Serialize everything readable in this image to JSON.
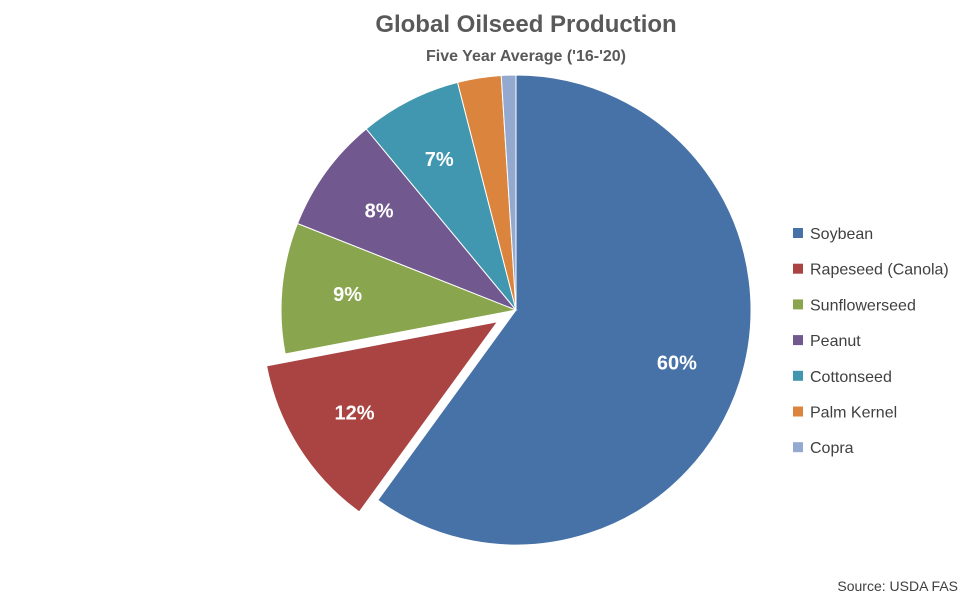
{
  "chart_data": {
    "type": "pie",
    "title": "Global Oilseed Production",
    "subtitle": "Five Year Average ('16-'20)",
    "source": "Source: USDA FAS",
    "legend_position": "right",
    "exploded_category": "Rapeseed (Canola)",
    "slices": [
      {
        "name": "Soybean",
        "value": 60,
        "label": "60%",
        "color": "#4672A8"
      },
      {
        "name": "Rapeseed (Canola)",
        "value": 12,
        "label": "12%",
        "color": "#A94442"
      },
      {
        "name": "Sunflowerseed",
        "value": 9,
        "label": "9%",
        "color": "#89A54E"
      },
      {
        "name": "Peanut",
        "value": 8,
        "label": "8%",
        "color": "#71588F"
      },
      {
        "name": "Cottonseed",
        "value": 7,
        "label": "7%",
        "color": "#4197AF"
      },
      {
        "name": "Palm Kernel",
        "value": 3,
        "label": "",
        "color": "#DB843D"
      },
      {
        "name": "Copra",
        "value": 1,
        "label": "",
        "color": "#93A9CF"
      }
    ]
  }
}
